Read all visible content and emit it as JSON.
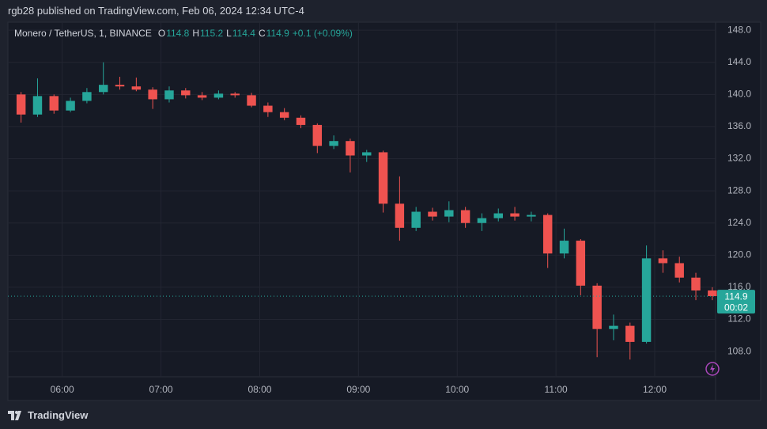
{
  "header": "rgb28 published on TradingView.com, Feb 06, 2024 12:34 UTC-4",
  "footer": "TradingView",
  "chart_data": {
    "type": "candlestick",
    "title": "Monero / TetherUS, 1, BINANCE",
    "legend_fields": [
      {
        "label": "O",
        "value": 114.8
      },
      {
        "label": "H",
        "value": 115.2
      },
      {
        "label": "L",
        "value": 114.4
      },
      {
        "label": "C",
        "value": 114.9
      }
    ],
    "change": "+0.1 (+0.09%)",
    "price_label": {
      "value": 114.9,
      "countdown": "00:02"
    },
    "up_color": "#26a69a",
    "down_color": "#ef5350",
    "x": [
      "05:30",
      "05:40",
      "05:50",
      "06:00",
      "06:10",
      "06:20",
      "06:30",
      "06:40",
      "06:50",
      "07:00",
      "07:10",
      "07:20",
      "07:30",
      "07:40",
      "07:50",
      "08:00",
      "08:10",
      "08:20",
      "08:30",
      "08:40",
      "08:50",
      "09:00",
      "09:10",
      "09:20",
      "09:30",
      "09:40",
      "09:50",
      "10:00",
      "10:10",
      "10:20",
      "10:30",
      "10:40",
      "10:50",
      "11:00",
      "11:10",
      "11:20",
      "11:30",
      "11:40",
      "11:50",
      "12:00",
      "12:10",
      "12:20",
      "12:30"
    ],
    "open": [
      140.0,
      137.5,
      139.8,
      138.0,
      139.2,
      140.3,
      141.2,
      141.0,
      140.6,
      139.4,
      140.5,
      139.9,
      139.6,
      140.1,
      139.9,
      138.6,
      137.8,
      137.1,
      136.2,
      133.6,
      134.2,
      132.4,
      132.8,
      126.4,
      123.4,
      125.4,
      124.8,
      125.6,
      124.0,
      124.6,
      125.2,
      124.8,
      125.0,
      120.2,
      121.8,
      116.2,
      110.8,
      111.2,
      109.2,
      119.6,
      119.0,
      117.2,
      115.6
    ],
    "high": [
      140.3,
      142.0,
      140.0,
      139.6,
      140.8,
      144.0,
      142.2,
      142.1,
      140.9,
      141.0,
      140.8,
      140.3,
      140.5,
      140.3,
      140.2,
      139.0,
      138.3,
      137.4,
      136.4,
      134.9,
      134.5,
      133.1,
      133.0,
      129.8,
      126.0,
      125.9,
      126.7,
      126.0,
      125.2,
      125.8,
      126.0,
      125.4,
      125.2,
      123.3,
      122.0,
      116.5,
      112.6,
      111.6,
      121.2,
      120.6,
      119.8,
      117.8,
      116.0
    ],
    "low": [
      136.5,
      137.2,
      137.6,
      137.8,
      138.9,
      140.0,
      140.6,
      140.4,
      138.2,
      139.0,
      139.5,
      139.3,
      139.4,
      139.6,
      138.4,
      137.2,
      136.8,
      135.8,
      132.7,
      133.2,
      130.3,
      131.6,
      125.3,
      121.8,
      123.0,
      124.3,
      124.1,
      123.4,
      123.0,
      124.2,
      124.3,
      124.2,
      118.4,
      119.6,
      115.0,
      107.3,
      109.4,
      107.0,
      109.0,
      117.8,
      116.6,
      114.4,
      114.4
    ],
    "close": [
      137.5,
      139.8,
      138.0,
      139.2,
      140.3,
      141.2,
      141.0,
      140.6,
      139.4,
      140.5,
      139.9,
      139.6,
      140.1,
      139.9,
      138.6,
      137.8,
      137.1,
      136.2,
      133.6,
      134.2,
      132.4,
      132.8,
      126.4,
      123.4,
      125.4,
      124.8,
      125.6,
      124.0,
      124.6,
      125.2,
      124.8,
      125.0,
      120.2,
      121.8,
      116.2,
      110.8,
      111.2,
      109.2,
      119.6,
      119.0,
      117.2,
      115.6,
      114.9
    ],
    "xlim": [
      "05:27",
      "12:37"
    ],
    "xticks": [
      "06:00",
      "07:00",
      "08:00",
      "09:00",
      "10:00",
      "11:00",
      "12:00"
    ],
    "ylim": [
      102,
      149
    ],
    "yticks": [
      {
        "value": 108,
        "label": "108.0"
      },
      {
        "value": 112,
        "label": "112.0"
      },
      {
        "value": 116,
        "label": "116.0"
      },
      {
        "value": 120,
        "label": "120.0"
      },
      {
        "value": 124,
        "label": "124.0"
      },
      {
        "value": 128,
        "label": "128.0"
      },
      {
        "value": 132,
        "label": "132.0"
      },
      {
        "value": 136,
        "label": "136.0"
      },
      {
        "value": 140,
        "label": "140.0"
      },
      {
        "value": 144,
        "label": "144.0"
      },
      {
        "value": 148,
        "label": "148.0"
      }
    ],
    "grid": true
  }
}
